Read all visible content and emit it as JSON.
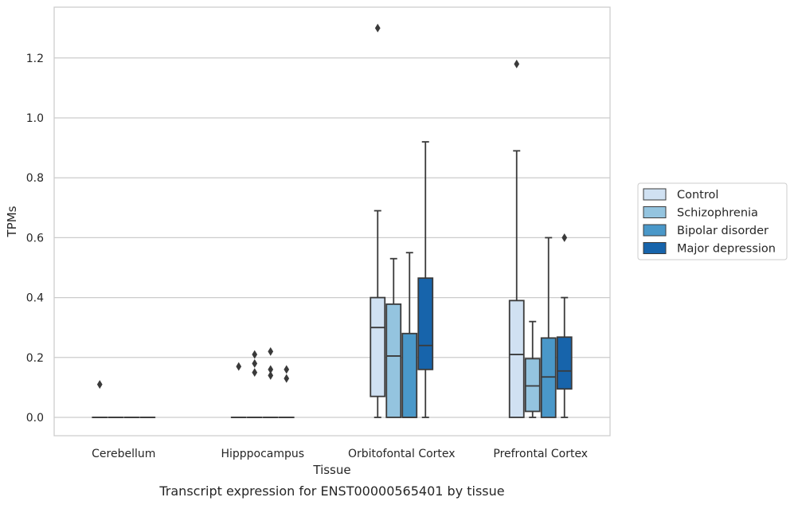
{
  "chart_data": {
    "type": "boxplot",
    "caption": "Transcript expression for ENST00000565401 by tissue",
    "xlabel": "Tissue",
    "ylabel": "TPMs",
    "ylim": [
      -0.065,
      1.36
    ],
    "yticks": [
      0.0,
      0.2,
      0.4,
      0.6,
      0.8,
      1.0,
      1.2
    ],
    "ytick_labels": [
      "0.0",
      "0.2",
      "0.4",
      "0.6",
      "0.8",
      "1.0",
      "1.2"
    ],
    "grid": "horizontal",
    "legend_position": "right",
    "categories": [
      "Cerebellum",
      "Hipppocampus",
      "Orbitofontal Cortex",
      "Prefrontal Cortex"
    ],
    "series": [
      {
        "name": "Control",
        "color": "#d0e1f2",
        "boxes": [
          {
            "q1": 0.0,
            "median": 0.0,
            "q3": 0.0,
            "whislo": 0.0,
            "whishi": 0.0,
            "fliers": [
              0.11
            ]
          },
          {
            "q1": 0.0,
            "median": 0.0,
            "q3": 0.0,
            "whislo": 0.0,
            "whishi": 0.0,
            "fliers": [
              0.17
            ]
          },
          {
            "q1": 0.07,
            "median": 0.3,
            "q3": 0.4,
            "whislo": 0.0,
            "whishi": 0.69,
            "fliers": [
              1.3
            ]
          },
          {
            "q1": 0.0,
            "median": 0.21,
            "q3": 0.39,
            "whislo": 0.0,
            "whishi": 0.89,
            "fliers": [
              1.18
            ]
          }
        ]
      },
      {
        "name": "Schizophrenia",
        "color": "#94c4df",
        "boxes": [
          {
            "q1": 0.0,
            "median": 0.0,
            "q3": 0.0,
            "whislo": 0.0,
            "whishi": 0.0,
            "fliers": []
          },
          {
            "q1": 0.0,
            "median": 0.0,
            "q3": 0.0,
            "whislo": 0.0,
            "whishi": 0.0,
            "fliers": [
              0.15,
              0.18,
              0.21
            ]
          },
          {
            "q1": 0.0,
            "median": 0.205,
            "q3": 0.378,
            "whislo": 0.0,
            "whishi": 0.53,
            "fliers": []
          },
          {
            "q1": 0.02,
            "median": 0.105,
            "q3": 0.196,
            "whislo": 0.0,
            "whishi": 0.32,
            "fliers": []
          }
        ]
      },
      {
        "name": "Bipolar disorder",
        "color": "#4a98c9",
        "boxes": [
          {
            "q1": 0.0,
            "median": 0.0,
            "q3": 0.0,
            "whislo": 0.0,
            "whishi": 0.0,
            "fliers": []
          },
          {
            "q1": 0.0,
            "median": 0.0,
            "q3": 0.0,
            "whislo": 0.0,
            "whishi": 0.0,
            "fliers": [
              0.14,
              0.16,
              0.22
            ]
          },
          {
            "q1": 0.0,
            "median": 0.0,
            "q3": 0.28,
            "whislo": 0.0,
            "whishi": 0.55,
            "fliers": []
          },
          {
            "q1": 0.0,
            "median": 0.135,
            "q3": 0.265,
            "whislo": 0.0,
            "whishi": 0.6,
            "fliers": []
          }
        ]
      },
      {
        "name": "Major depression",
        "color": "#1764ab",
        "boxes": [
          {
            "q1": 0.0,
            "median": 0.0,
            "q3": 0.0,
            "whislo": 0.0,
            "whishi": 0.0,
            "fliers": []
          },
          {
            "q1": 0.0,
            "median": 0.0,
            "q3": 0.0,
            "whislo": 0.0,
            "whishi": 0.0,
            "fliers": [
              0.13,
              0.16
            ]
          },
          {
            "q1": 0.16,
            "median": 0.24,
            "q3": 0.465,
            "whislo": 0.0,
            "whishi": 0.92,
            "fliers": []
          },
          {
            "q1": 0.095,
            "median": 0.155,
            "q3": 0.268,
            "whislo": 0.0,
            "whishi": 0.4,
            "fliers": [
              0.6
            ]
          }
        ]
      }
    ]
  }
}
